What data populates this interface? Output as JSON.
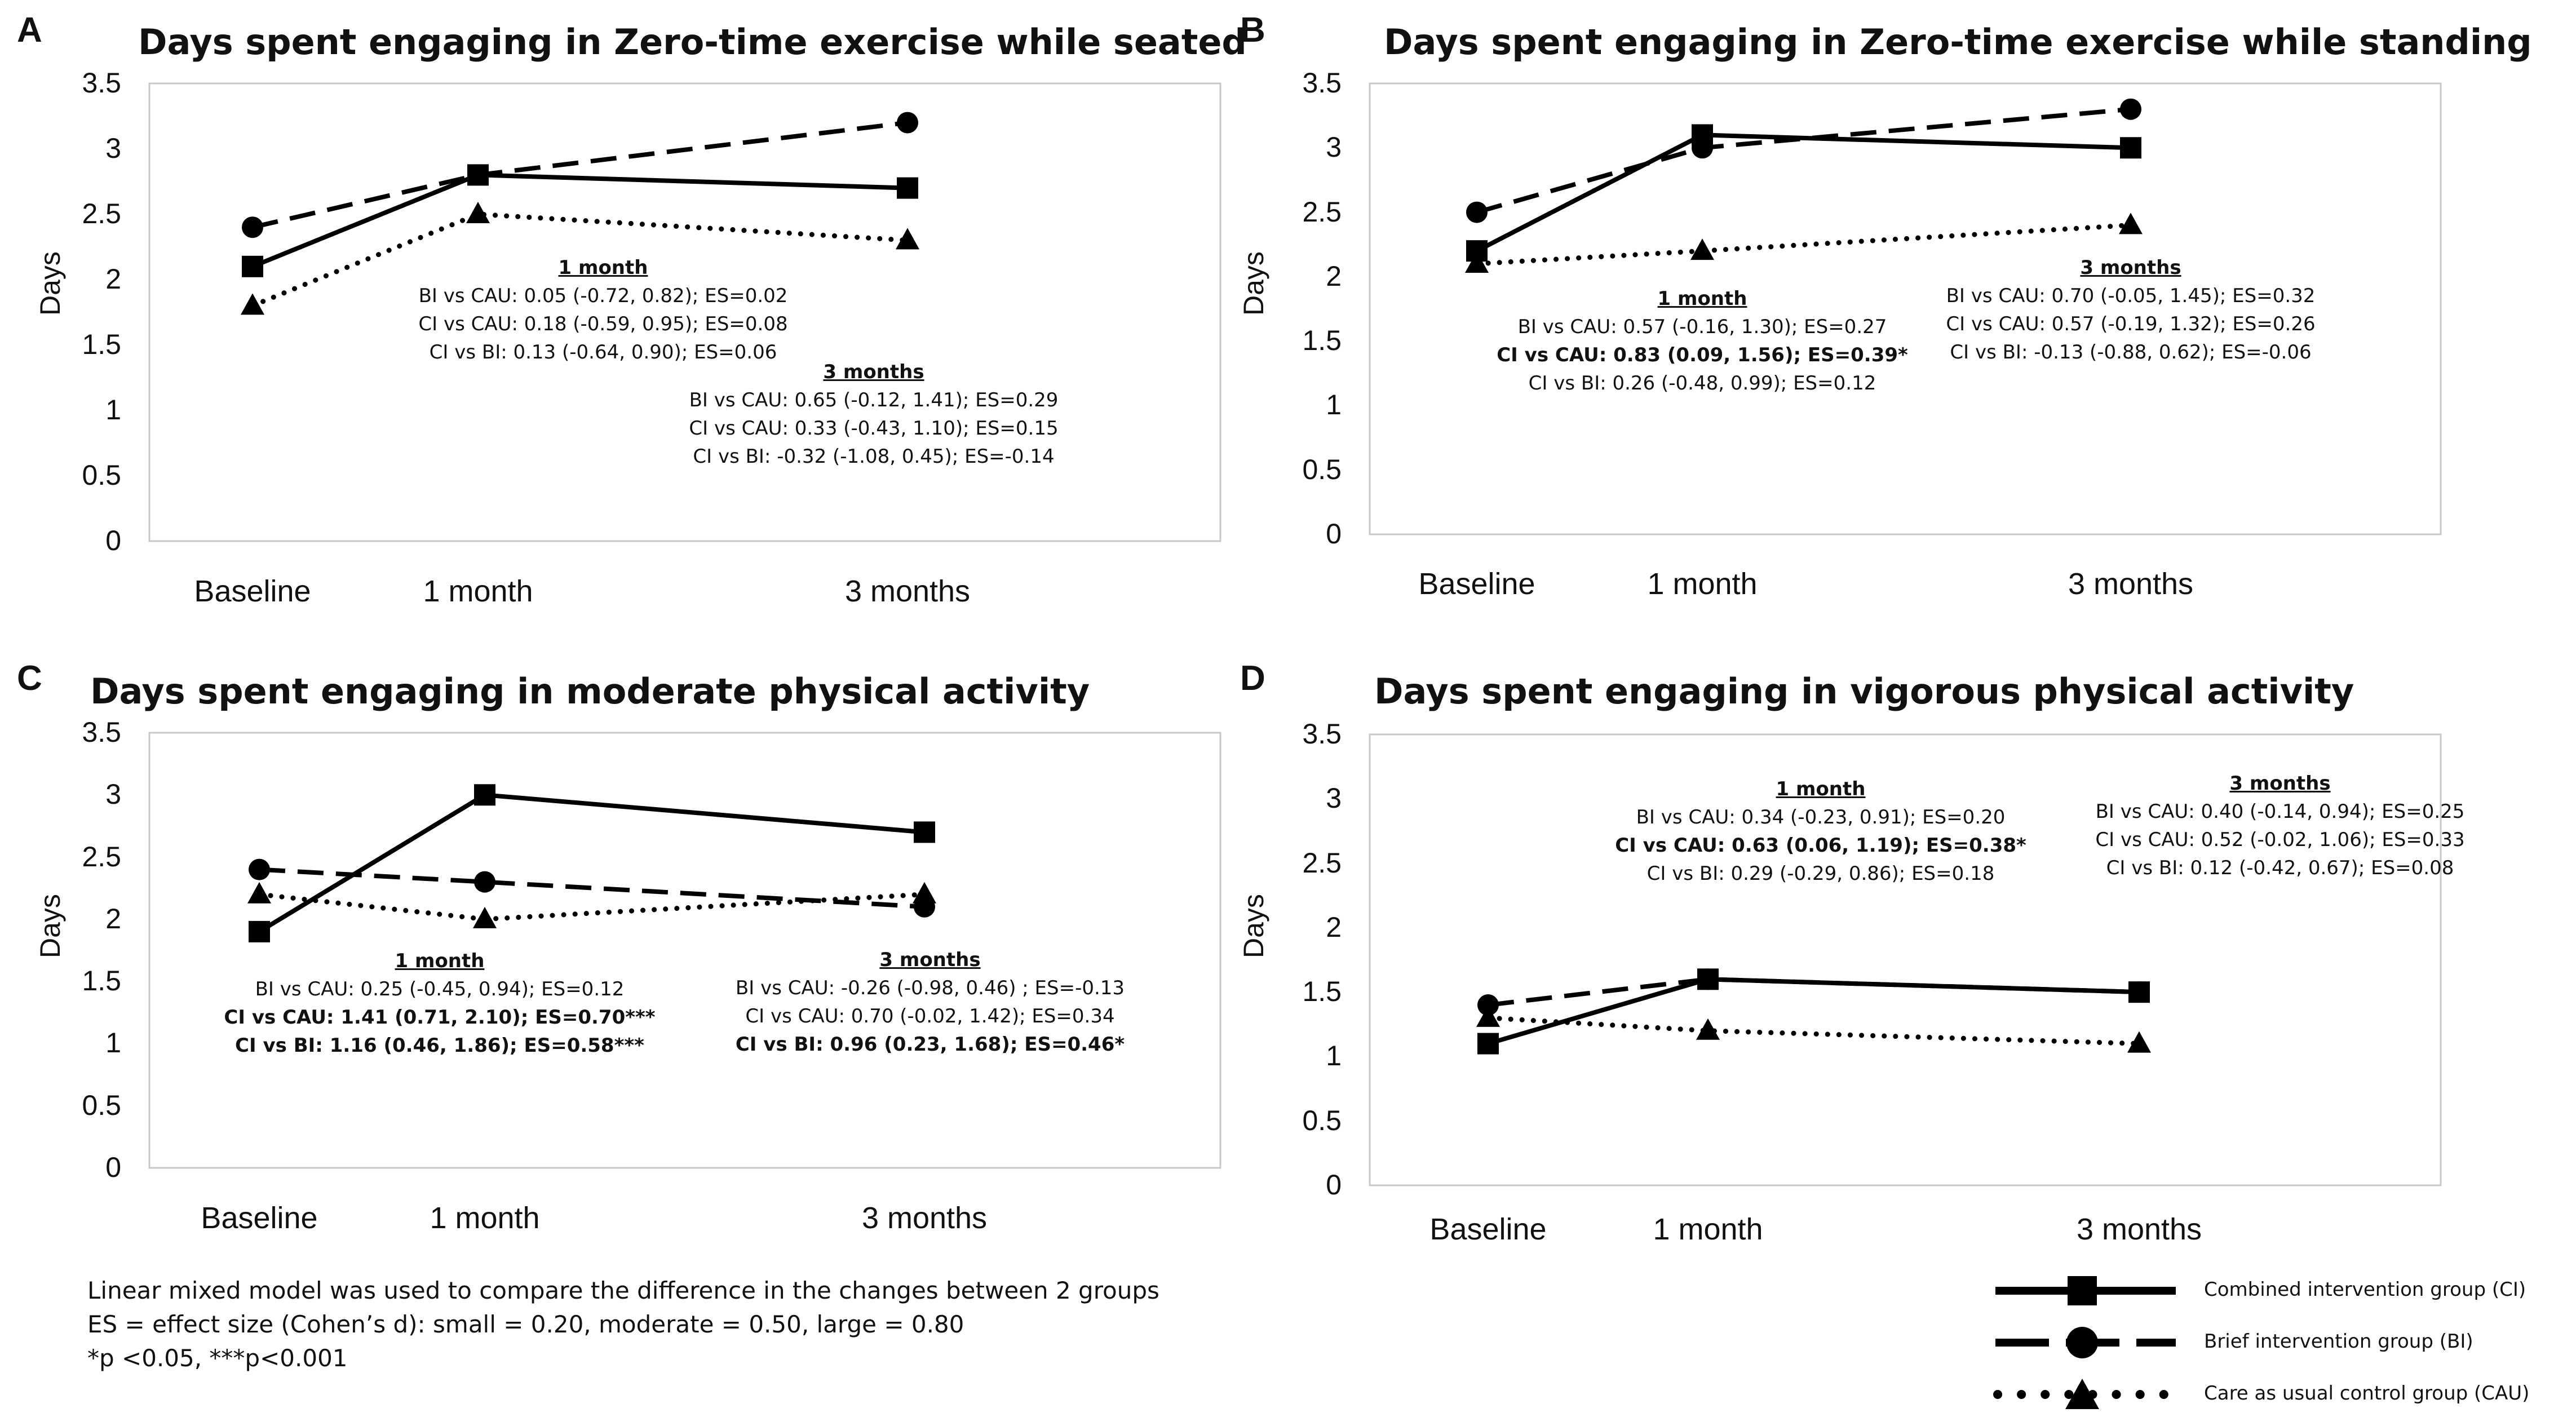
{
  "chart_data": [
    {
      "type": "line",
      "panel": "A",
      "title": "Days spent engaging in Zero-time exercise while seated",
      "ylabel": "Days",
      "ylim": [
        0,
        3.5
      ],
      "yticks": [
        "0",
        "0.5",
        "1",
        "1.5",
        "2",
        "2.5",
        "3",
        "3.5"
      ],
      "categories": [
        "Baseline",
        "1 month",
        "3 months"
      ],
      "series": [
        {
          "name": "Combined intervention group (CI)",
          "values": [
            2.1,
            2.8,
            2.7
          ]
        },
        {
          "name": "Brief intervention group (BI)",
          "values": [
            2.4,
            2.8,
            3.2
          ]
        },
        {
          "name": "Care as usual control group (CAU)",
          "values": [
            1.8,
            2.5,
            2.3
          ]
        }
      ],
      "annotations": [
        {
          "heading": "1 month",
          "lines": [
            {
              "text": "BI vs CAU: 0.05 (-0.72, 0.82); ES=0.02",
              "bold": false
            },
            {
              "text": "CI vs CAU: 0.18 (-0.59, 0.95); ES=0.08",
              "bold": false
            },
            {
              "text": "CI vs BI: 0.13 (-0.64, 0.90); ES=0.06",
              "bold": false
            }
          ]
        },
        {
          "heading": "3 months",
          "lines": [
            {
              "text": "BI vs CAU: 0.65 (-0.12, 1.41); ES=0.29",
              "bold": false
            },
            {
              "text": "CI vs CAU: 0.33 (-0.43, 1.10); ES=0.15",
              "bold": false
            },
            {
              "text": "CI vs BI: -0.32 (-1.08, 0.45); ES=-0.14",
              "bold": false
            }
          ]
        }
      ]
    },
    {
      "type": "line",
      "panel": "B",
      "title": "Days spent engaging in Zero-time exercise while standing",
      "ylabel": "Days",
      "ylim": [
        0,
        3.5
      ],
      "yticks": [
        "0",
        "0.5",
        "1",
        "1.5",
        "2",
        "2.5",
        "3",
        "3.5"
      ],
      "categories": [
        "Baseline",
        "1 month",
        "3 months"
      ],
      "series": [
        {
          "name": "Combined intervention group (CI)",
          "values": [
            2.2,
            3.1,
            3.0
          ]
        },
        {
          "name": "Brief intervention group (BI)",
          "values": [
            2.5,
            3.0,
            3.3
          ]
        },
        {
          "name": "Care as usual control group (CAU)",
          "values": [
            2.1,
            2.2,
            2.4
          ]
        }
      ],
      "annotations": [
        {
          "heading": "1 month",
          "lines": [
            {
              "text": "BI vs CAU: 0.57 (-0.16, 1.30); ES=0.27",
              "bold": false
            },
            {
              "text": "CI vs CAU: 0.83 (0.09, 1.56); ES=0.39*",
              "bold": true
            },
            {
              "text": "CI vs BI: 0.26 (-0.48, 0.99); ES=0.12",
              "bold": false
            }
          ]
        },
        {
          "heading": "3 months",
          "lines": [
            {
              "text": "BI vs CAU: 0.70 (-0.05, 1.45); ES=0.32",
              "bold": false
            },
            {
              "text": "CI vs CAU: 0.57 (-0.19, 1.32); ES=0.26",
              "bold": false
            },
            {
              "text": "CI vs BI: -0.13 (-0.88, 0.62); ES=-0.06",
              "bold": false
            }
          ]
        }
      ]
    },
    {
      "type": "line",
      "panel": "C",
      "title": "Days spent engaging in moderate physical activity",
      "ylabel": "Days",
      "ylim": [
        0,
        3.5
      ],
      "yticks": [
        "0",
        "0.5",
        "1",
        "1.5",
        "2",
        "2.5",
        "3",
        "3.5"
      ],
      "categories": [
        "Baseline",
        "1 month",
        "3 months"
      ],
      "series": [
        {
          "name": "Combined intervention group (CI)",
          "values": [
            1.9,
            3.0,
            2.7
          ]
        },
        {
          "name": "Brief intervention group (BI)",
          "values": [
            2.4,
            2.3,
            2.1
          ]
        },
        {
          "name": "Care as usual control group (CAU)",
          "values": [
            2.2,
            2.0,
            2.2
          ]
        }
      ],
      "annotations": [
        {
          "heading": "1 month",
          "lines": [
            {
              "text": "BI vs CAU: 0.25 (-0.45, 0.94); ES=0.12",
              "bold": false
            },
            {
              "text": "CI vs CAU: 1.41 (0.71, 2.10); ES=0.70***",
              "bold": true
            },
            {
              "text": "CI vs BI: 1.16 (0.46, 1.86); ES=0.58***",
              "bold": true
            }
          ]
        },
        {
          "heading": "3 months",
          "lines": [
            {
              "text": "BI vs CAU: -0.26 (-0.98, 0.46) ; ES=-0.13",
              "bold": false
            },
            {
              "text": "CI vs CAU: 0.70 (-0.02, 1.42); ES=0.34",
              "bold": false
            },
            {
              "text": "CI vs BI: 0.96 (0.23, 1.68); ES=0.46*",
              "bold": true
            }
          ]
        }
      ]
    },
    {
      "type": "line",
      "panel": "D",
      "title": "Days spent engaging in vigorous physical activity",
      "ylabel": "Days",
      "ylim": [
        0,
        3.5
      ],
      "yticks": [
        "0",
        "0.5",
        "1",
        "1.5",
        "2",
        "2.5",
        "3",
        "3.5"
      ],
      "categories": [
        "Baseline",
        "1 month",
        "3 months"
      ],
      "series": [
        {
          "name": "Combined intervention group (CI)",
          "values": [
            1.1,
            1.6,
            1.5
          ]
        },
        {
          "name": "Brief intervention group (BI)",
          "values": [
            1.4,
            1.6,
            1.5
          ]
        },
        {
          "name": "Care as usual control group (CAU)",
          "values": [
            1.3,
            1.2,
            1.1
          ]
        }
      ],
      "annotations": [
        {
          "heading": "1 month",
          "lines": [
            {
              "text": "BI vs CAU: 0.34 (-0.23, 0.91); ES=0.20",
              "bold": false
            },
            {
              "text": "CI vs CAU: 0.63 (0.06, 1.19); ES=0.38*",
              "bold": true
            },
            {
              "text": "CI vs BI: 0.29 (-0.29, 0.86); ES=0.18",
              "bold": false
            }
          ]
        },
        {
          "heading": "3 months",
          "lines": [
            {
              "text": "BI vs CAU: 0.40 (-0.14, 0.94); ES=0.25",
              "bold": false
            },
            {
              "text": "CI vs CAU: 0.52 (-0.02, 1.06); ES=0.33",
              "bold": false
            },
            {
              "text": "CI vs BI: 0.12 (-0.42, 0.67); ES=0.08",
              "bold": false
            }
          ]
        }
      ]
    }
  ],
  "footnote": {
    "lines": [
      "Linear mixed model was used to compare the difference in the changes between 2 groups",
      "ES = effect size (Cohen’s d): small = 0.20, moderate = 0.50, large = 0.80",
      " *p <0.05, ***p<0.001"
    ]
  },
  "legend": {
    "items": [
      {
        "label": "Combined intervention group (CI)",
        "marker": "square",
        "dash": "solid"
      },
      {
        "label": "Brief intervention group (BI)",
        "marker": "circle",
        "dash": "dashed"
      },
      {
        "label": "Care as usual control group (CAU)",
        "marker": "triangle",
        "dash": "dotted"
      }
    ]
  }
}
